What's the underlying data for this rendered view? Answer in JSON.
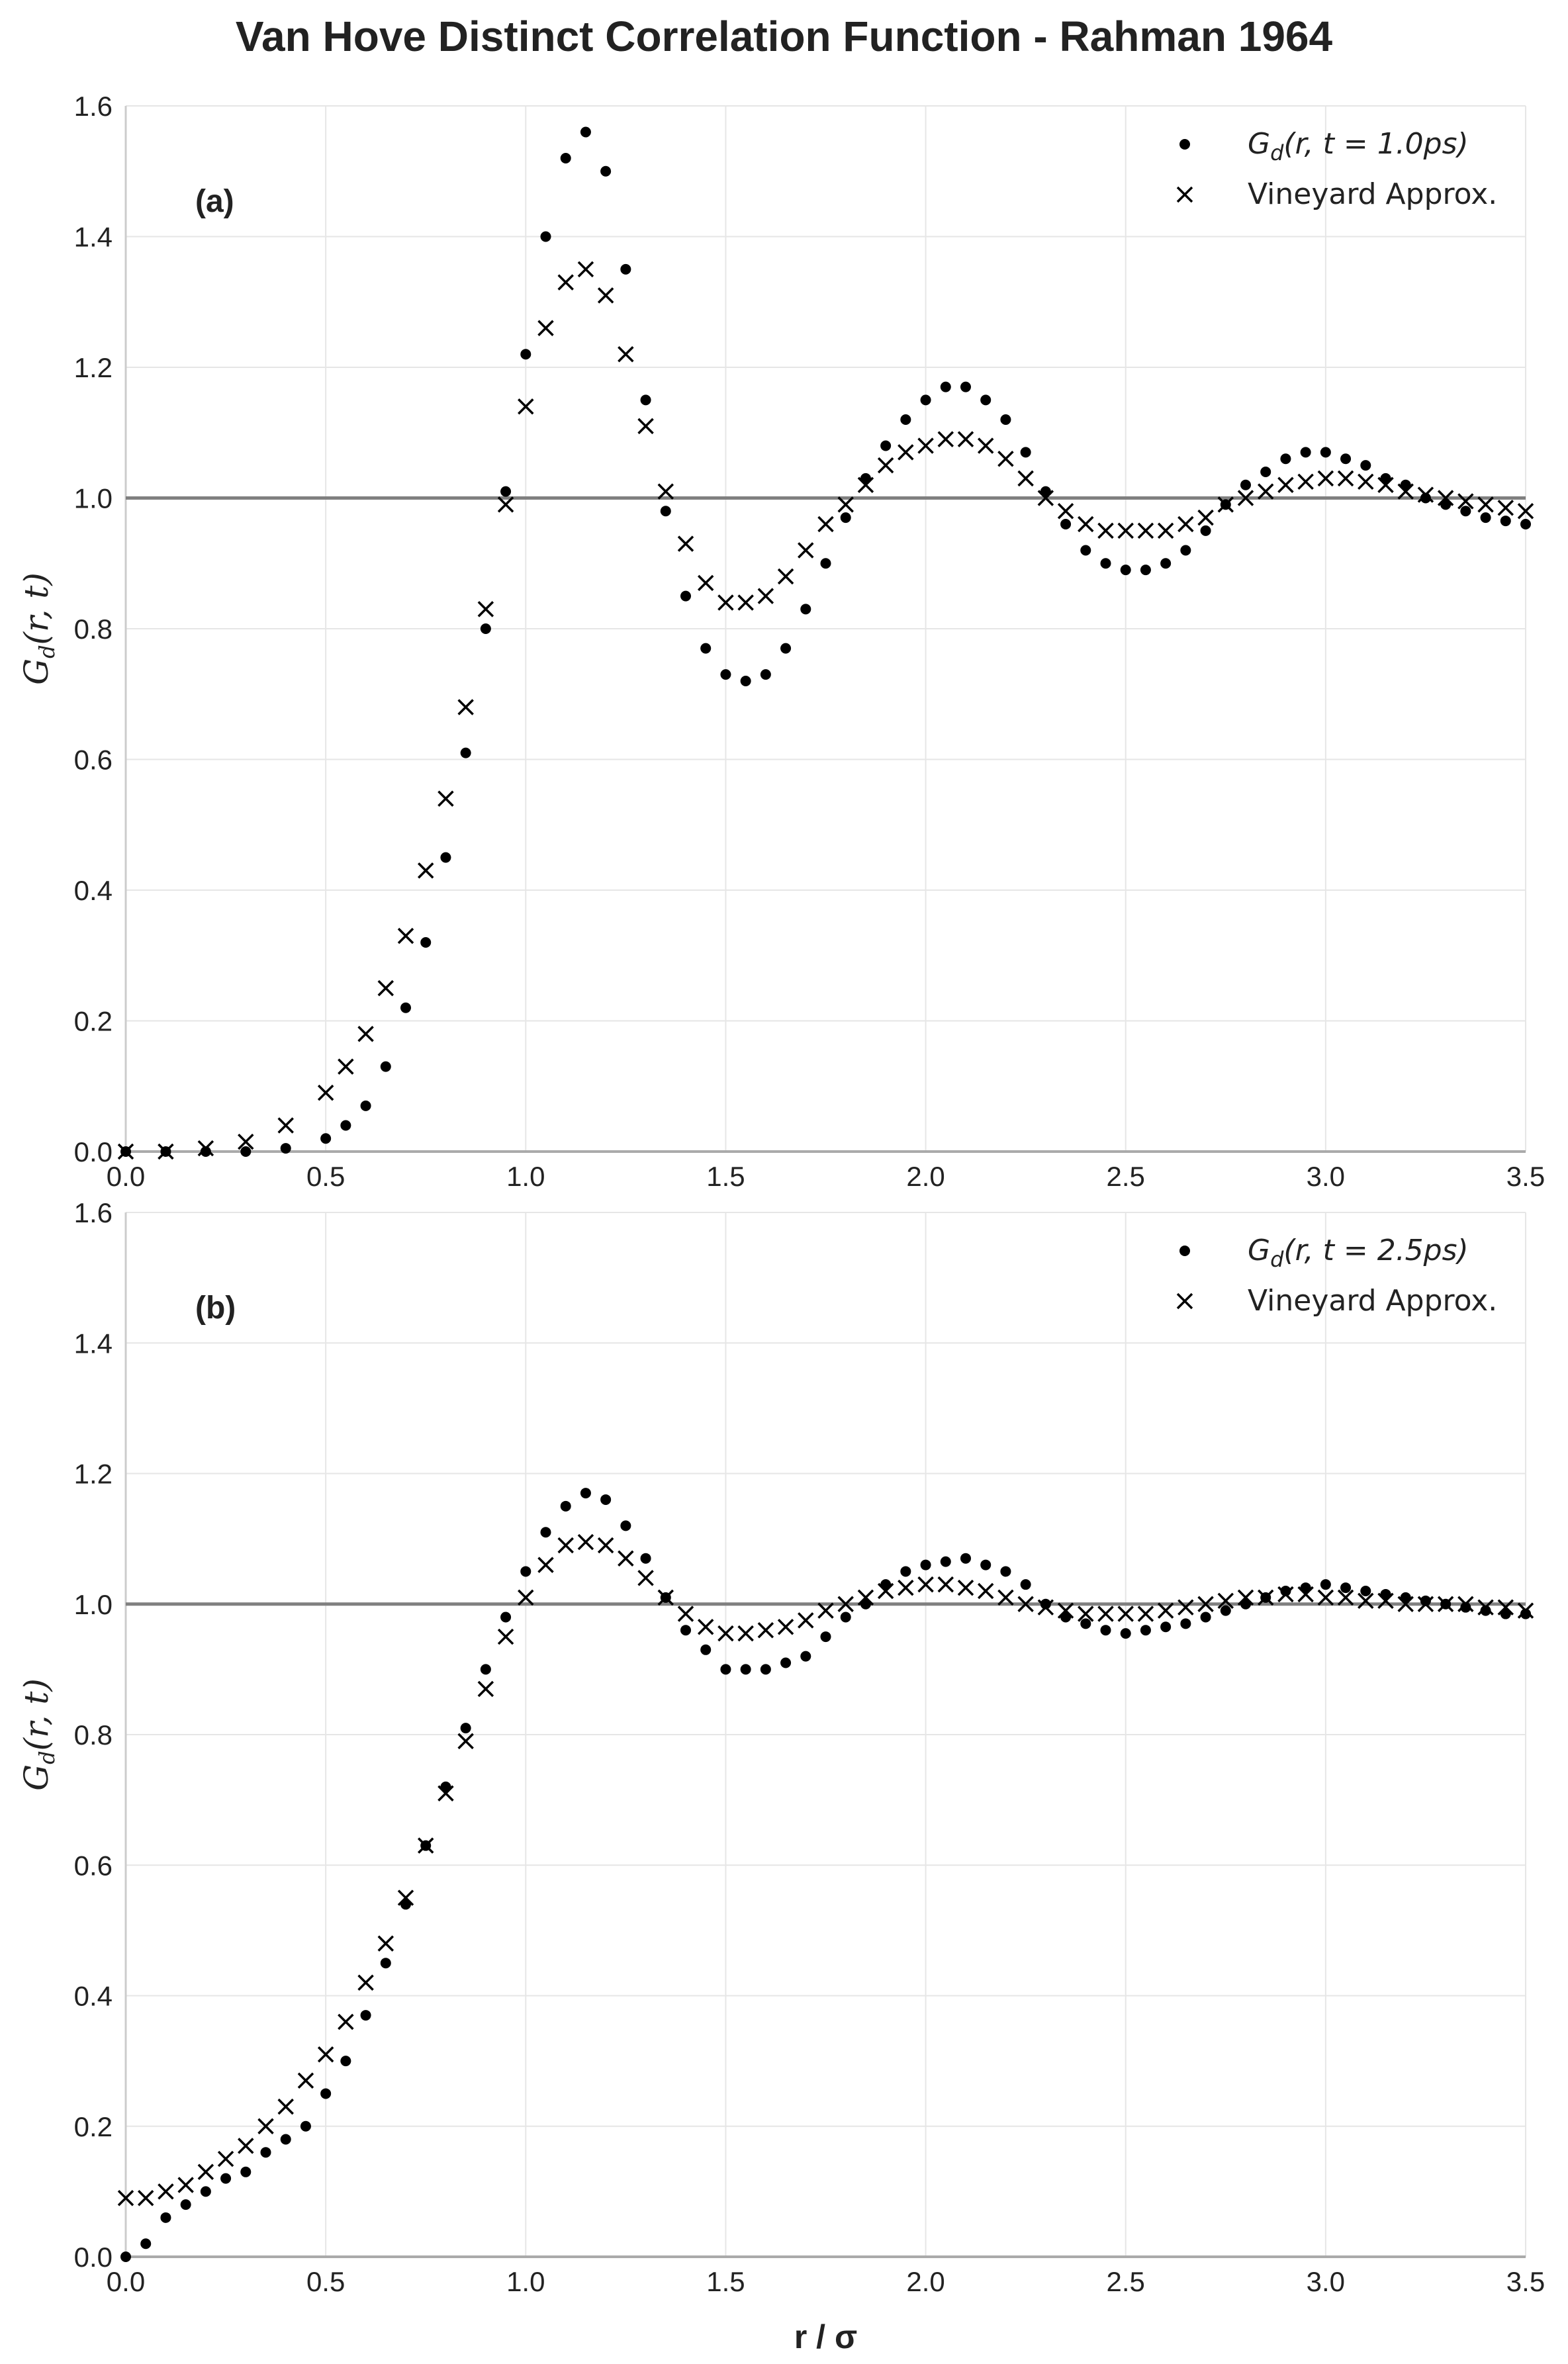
{
  "chart_data": [
    {
      "type": "scatter",
      "title": "Van Hove Distinct Correlation Function - Rahman 1964",
      "panel_label": "(a)",
      "xlabel": "r / σ",
      "ylabel": "G_d(r, t)",
      "xlim": [
        0.0,
        3.5
      ],
      "ylim": [
        0.0,
        1.6
      ],
      "xticks": [
        "0.0",
        "0.5",
        "1.0",
        "1.5",
        "2.0",
        "2.5",
        "3.0",
        "3.5"
      ],
      "yticks": [
        "0.0",
        "0.2",
        "0.4",
        "0.6",
        "0.8",
        "1.0",
        "1.2",
        "1.4",
        "1.6"
      ],
      "reference_line": 1.0,
      "legend_position": "top-right",
      "series": [
        {
          "name": "G_d(r, t = 1.0ps)",
          "marker": "dot",
          "x": [
            0.0,
            0.1,
            0.2,
            0.3,
            0.4,
            0.5,
            0.55,
            0.6,
            0.65,
            0.7,
            0.75,
            0.8,
            0.85,
            0.9,
            0.95,
            1.0,
            1.05,
            1.1,
            1.15,
            1.2,
            1.25,
            1.3,
            1.35,
            1.4,
            1.45,
            1.5,
            1.55,
            1.6,
            1.65,
            1.7,
            1.75,
            1.8,
            1.85,
            1.9,
            1.95,
            2.0,
            2.05,
            2.1,
            2.15,
            2.2,
            2.25,
            2.3,
            2.35,
            2.4,
            2.45,
            2.5,
            2.55,
            2.6,
            2.65,
            2.7,
            2.75,
            2.8,
            2.85,
            2.9,
            2.95,
            3.0,
            3.05,
            3.1,
            3.15,
            3.2,
            3.25,
            3.3,
            3.35,
            3.4,
            3.45,
            3.5
          ],
          "y": [
            0.0,
            0.0,
            0.0,
            0.0,
            0.005,
            0.02,
            0.04,
            0.07,
            0.13,
            0.22,
            0.32,
            0.45,
            0.61,
            0.8,
            1.01,
            1.22,
            1.4,
            1.52,
            1.56,
            1.5,
            1.35,
            1.15,
            0.98,
            0.85,
            0.77,
            0.73,
            0.72,
            0.73,
            0.77,
            0.83,
            0.9,
            0.97,
            1.03,
            1.08,
            1.12,
            1.15,
            1.17,
            1.17,
            1.15,
            1.12,
            1.07,
            1.01,
            0.96,
            0.92,
            0.9,
            0.89,
            0.89,
            0.9,
            0.92,
            0.95,
            0.99,
            1.02,
            1.04,
            1.06,
            1.07,
            1.07,
            1.06,
            1.05,
            1.03,
            1.02,
            1.0,
            0.99,
            0.98,
            0.97,
            0.965,
            0.96
          ]
        },
        {
          "name": "Vineyard Approx.",
          "marker": "x",
          "x": [
            0.0,
            0.1,
            0.2,
            0.3,
            0.4,
            0.5,
            0.55,
            0.6,
            0.65,
            0.7,
            0.75,
            0.8,
            0.85,
            0.9,
            0.95,
            1.0,
            1.05,
            1.1,
            1.15,
            1.2,
            1.25,
            1.3,
            1.35,
            1.4,
            1.45,
            1.5,
            1.55,
            1.6,
            1.65,
            1.7,
            1.75,
            1.8,
            1.85,
            1.9,
            1.95,
            2.0,
            2.05,
            2.1,
            2.15,
            2.2,
            2.25,
            2.3,
            2.35,
            2.4,
            2.45,
            2.5,
            2.55,
            2.6,
            2.65,
            2.7,
            2.75,
            2.8,
            2.85,
            2.9,
            2.95,
            3.0,
            3.05,
            3.1,
            3.15,
            3.2,
            3.25,
            3.3,
            3.35,
            3.4,
            3.45,
            3.5
          ],
          "y": [
            0.0,
            0.0,
            0.005,
            0.015,
            0.04,
            0.09,
            0.13,
            0.18,
            0.25,
            0.33,
            0.43,
            0.54,
            0.68,
            0.83,
            0.99,
            1.14,
            1.26,
            1.33,
            1.35,
            1.31,
            1.22,
            1.11,
            1.01,
            0.93,
            0.87,
            0.84,
            0.84,
            0.85,
            0.88,
            0.92,
            0.96,
            0.99,
            1.02,
            1.05,
            1.07,
            1.08,
            1.09,
            1.09,
            1.08,
            1.06,
            1.03,
            1.0,
            0.98,
            0.96,
            0.95,
            0.95,
            0.95,
            0.95,
            0.96,
            0.97,
            0.99,
            1.0,
            1.01,
            1.02,
            1.025,
            1.03,
            1.03,
            1.025,
            1.02,
            1.01,
            1.005,
            1.0,
            0.995,
            0.99,
            0.985,
            0.98
          ]
        }
      ]
    },
    {
      "type": "scatter",
      "panel_label": "(b)",
      "xlabel": "r / σ",
      "ylabel": "G_d(r, t)",
      "xlim": [
        0.0,
        3.5
      ],
      "ylim": [
        0.0,
        1.6
      ],
      "xticks": [
        "0.0",
        "0.5",
        "1.0",
        "1.5",
        "2.0",
        "2.5",
        "3.0",
        "3.5"
      ],
      "yticks": [
        "0.0",
        "0.2",
        "0.4",
        "0.6",
        "0.8",
        "1.0",
        "1.2",
        "1.4",
        "1.6"
      ],
      "reference_line": 1.0,
      "legend_position": "top-right",
      "series": [
        {
          "name": "G_d(r, t = 2.5ps)",
          "marker": "dot",
          "x": [
            0.0,
            0.05,
            0.1,
            0.15,
            0.2,
            0.25,
            0.3,
            0.35,
            0.4,
            0.45,
            0.5,
            0.55,
            0.6,
            0.65,
            0.7,
            0.75,
            0.8,
            0.85,
            0.9,
            0.95,
            1.0,
            1.05,
            1.1,
            1.15,
            1.2,
            1.25,
            1.3,
            1.35,
            1.4,
            1.45,
            1.5,
            1.55,
            1.6,
            1.65,
            1.7,
            1.75,
            1.8,
            1.85,
            1.9,
            1.95,
            2.0,
            2.05,
            2.1,
            2.15,
            2.2,
            2.25,
            2.3,
            2.35,
            2.4,
            2.45,
            2.5,
            2.55,
            2.6,
            2.65,
            2.7,
            2.75,
            2.8,
            2.85,
            2.9,
            2.95,
            3.0,
            3.05,
            3.1,
            3.15,
            3.2,
            3.25,
            3.3,
            3.35,
            3.4,
            3.45,
            3.5
          ],
          "y": [
            0.0,
            0.02,
            0.06,
            0.08,
            0.1,
            0.12,
            0.13,
            0.16,
            0.18,
            0.2,
            0.25,
            0.3,
            0.37,
            0.45,
            0.54,
            0.63,
            0.72,
            0.81,
            0.9,
            0.98,
            1.05,
            1.11,
            1.15,
            1.17,
            1.16,
            1.12,
            1.07,
            1.01,
            0.96,
            0.93,
            0.9,
            0.9,
            0.9,
            0.91,
            0.92,
            0.95,
            0.98,
            1.0,
            1.03,
            1.05,
            1.06,
            1.065,
            1.07,
            1.06,
            1.05,
            1.03,
            1.0,
            0.98,
            0.97,
            0.96,
            0.955,
            0.96,
            0.965,
            0.97,
            0.98,
            0.99,
            1.0,
            1.01,
            1.02,
            1.025,
            1.03,
            1.025,
            1.02,
            1.015,
            1.01,
            1.005,
            1.0,
            0.995,
            0.99,
            0.985,
            0.985
          ]
        },
        {
          "name": "Vineyard Approx.",
          "marker": "x",
          "x": [
            0.0,
            0.05,
            0.1,
            0.15,
            0.2,
            0.25,
            0.3,
            0.35,
            0.4,
            0.45,
            0.5,
            0.55,
            0.6,
            0.65,
            0.7,
            0.75,
            0.8,
            0.85,
            0.9,
            0.95,
            1.0,
            1.05,
            1.1,
            1.15,
            1.2,
            1.25,
            1.3,
            1.35,
            1.4,
            1.45,
            1.5,
            1.55,
            1.6,
            1.65,
            1.7,
            1.75,
            1.8,
            1.85,
            1.9,
            1.95,
            2.0,
            2.05,
            2.1,
            2.15,
            2.2,
            2.25,
            2.3,
            2.35,
            2.4,
            2.45,
            2.5,
            2.55,
            2.6,
            2.65,
            2.7,
            2.75,
            2.8,
            2.85,
            2.9,
            2.95,
            3.0,
            3.05,
            3.1,
            3.15,
            3.2,
            3.25,
            3.3,
            3.35,
            3.4,
            3.45,
            3.5
          ],
          "y": [
            0.09,
            0.09,
            0.1,
            0.11,
            0.13,
            0.15,
            0.17,
            0.2,
            0.23,
            0.27,
            0.31,
            0.36,
            0.42,
            0.48,
            0.55,
            0.63,
            0.71,
            0.79,
            0.87,
            0.95,
            1.01,
            1.06,
            1.09,
            1.095,
            1.09,
            1.07,
            1.04,
            1.01,
            0.985,
            0.965,
            0.955,
            0.955,
            0.96,
            0.965,
            0.975,
            0.99,
            1.0,
            1.01,
            1.02,
            1.025,
            1.03,
            1.03,
            1.025,
            1.02,
            1.01,
            1.0,
            0.995,
            0.99,
            0.985,
            0.985,
            0.985,
            0.985,
            0.99,
            0.995,
            1.0,
            1.005,
            1.01,
            1.01,
            1.015,
            1.015,
            1.01,
            1.01,
            1.005,
            1.005,
            1.0,
            1.0,
            1.0,
            1.0,
            0.995,
            0.995,
            0.99
          ]
        }
      ]
    }
  ]
}
